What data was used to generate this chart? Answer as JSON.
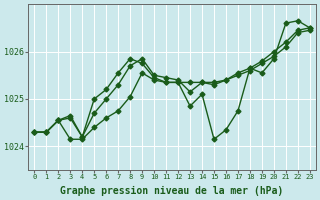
{
  "xlabel": "Graphe pression niveau de la mer (hPa)",
  "background_color": "#cce9ec",
  "grid_color": "#ffffff",
  "line_color": "#1a5c1a",
  "xlim": [
    -0.5,
    23.5
  ],
  "ylim": [
    1023.5,
    1027.0
  ],
  "yticks": [
    1024,
    1025,
    1026
  ],
  "xticks": [
    0,
    1,
    2,
    3,
    4,
    5,
    6,
    7,
    8,
    9,
    10,
    11,
    12,
    13,
    14,
    15,
    16,
    17,
    18,
    19,
    20,
    21,
    22,
    23
  ],
  "line1_x": [
    0,
    1,
    2,
    3,
    4,
    5,
    6,
    7,
    8,
    9,
    10,
    11,
    12,
    13,
    14,
    15,
    16,
    17,
    18,
    19,
    20,
    21,
    22,
    23
  ],
  "line1_y": [
    1024.3,
    1024.3,
    1024.55,
    1024.15,
    1024.15,
    1024.4,
    1024.6,
    1024.75,
    1025.05,
    1025.55,
    1025.4,
    1025.35,
    1025.35,
    1025.35,
    1025.35,
    1025.35,
    1025.4,
    1025.5,
    1025.6,
    1025.75,
    1025.9,
    1026.1,
    1026.4,
    1026.45
  ],
  "line2_x": [
    0,
    1,
    2,
    3,
    4,
    5,
    6,
    7,
    8,
    9,
    10,
    11,
    12,
    13,
    14,
    15,
    16,
    17,
    18,
    19,
    20,
    21,
    22,
    23
  ],
  "line2_y": [
    1024.3,
    1024.3,
    1024.55,
    1024.6,
    1024.2,
    1024.7,
    1025.0,
    1025.3,
    1025.7,
    1025.85,
    1025.5,
    1025.45,
    1025.4,
    1025.15,
    1025.35,
    1025.3,
    1025.4,
    1025.55,
    1025.65,
    1025.8,
    1026.0,
    1026.2,
    1026.45,
    1026.5
  ],
  "line3_x": [
    0,
    1,
    2,
    3,
    4,
    5,
    6,
    7,
    8,
    9,
    10,
    11,
    12,
    13,
    14,
    15,
    16,
    17,
    18,
    19,
    20,
    21,
    22,
    23
  ],
  "line3_y": [
    1024.3,
    1024.3,
    1024.55,
    1024.65,
    1024.2,
    1025.0,
    1025.2,
    1025.55,
    1025.85,
    1025.75,
    1025.45,
    1025.35,
    1025.35,
    1024.85,
    1025.1,
    1024.15,
    1024.35,
    1024.75,
    1025.65,
    1025.55,
    1025.85,
    1026.6,
    1026.65,
    1026.5
  ],
  "marker": "D",
  "marker_size": 2.5,
  "linewidth": 1.0,
  "xlabel_fontsize": 7,
  "tick_fontsize": 6
}
